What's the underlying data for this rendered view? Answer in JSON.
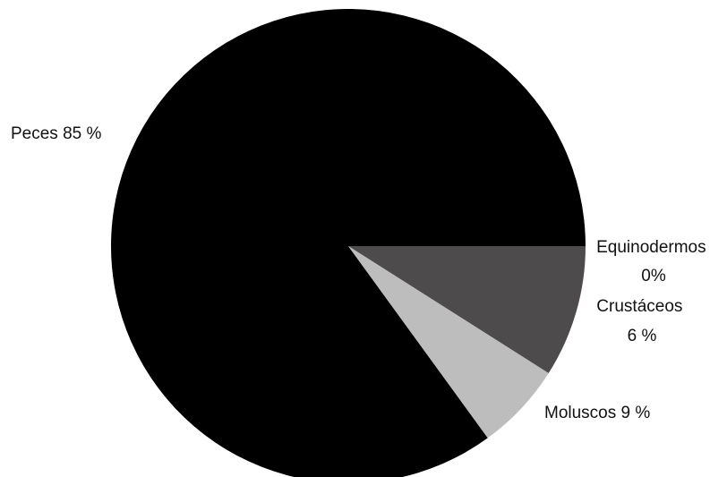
{
  "chart_data": {
    "type": "pie",
    "slices": [
      {
        "category": "Peces",
        "value": 85,
        "value_label": "85 %",
        "color": "#000000"
      },
      {
        "category": "Moluscos",
        "value": 9,
        "value_label": "9 %",
        "color": "#4d4b4c"
      },
      {
        "category": "Crustáceos",
        "value": 6,
        "value_label": "6 %",
        "color": "#bdbdbd"
      },
      {
        "category": "Equinodermos",
        "value": 0,
        "value_label": "0%",
        "color": "#ffffff"
      }
    ],
    "title": "",
    "legend": "none"
  }
}
